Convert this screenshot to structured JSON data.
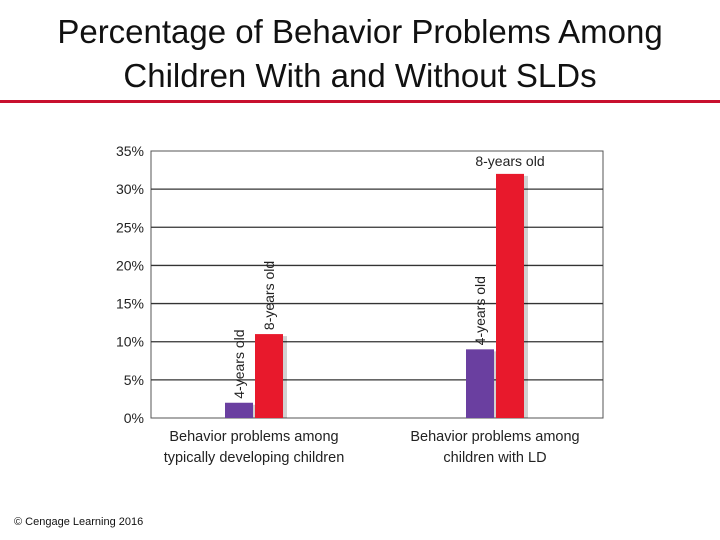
{
  "slide": {
    "title_line1": "Percentage of Behavior Problems Among",
    "title_line2": "Children With and Without SLDs",
    "copyright": "© Cengage Learning 2016"
  },
  "colors": {
    "accent_rule": "#c8102e",
    "bar_4yr": "#6a3fa0",
    "bar_8yr": "#e8192c"
  },
  "chart_data": {
    "type": "bar",
    "title": "Percentage of Behavior Problems Among Children With and Without SLDs",
    "xlabel": "",
    "ylabel": "",
    "ylim": [
      0,
      35
    ],
    "yticks": [
      0,
      5,
      10,
      15,
      20,
      25,
      30,
      35
    ],
    "ytick_labels": [
      "0%",
      "5%",
      "10%",
      "15%",
      "20%",
      "25%",
      "30%",
      "35%"
    ],
    "categories": [
      [
        "Behavior problems among",
        "typically developing children"
      ],
      [
        "Behavior problems among",
        "children with LD"
      ]
    ],
    "series": [
      {
        "name": "4-years old",
        "values": [
          2,
          9
        ]
      },
      {
        "name": "8-years old",
        "values": [
          11,
          32
        ]
      }
    ],
    "bar_labels": [
      [
        "4-years old",
        "8-years old"
      ],
      [
        "4-years old",
        "8-years old"
      ]
    ],
    "grid": true,
    "legend": "none"
  }
}
